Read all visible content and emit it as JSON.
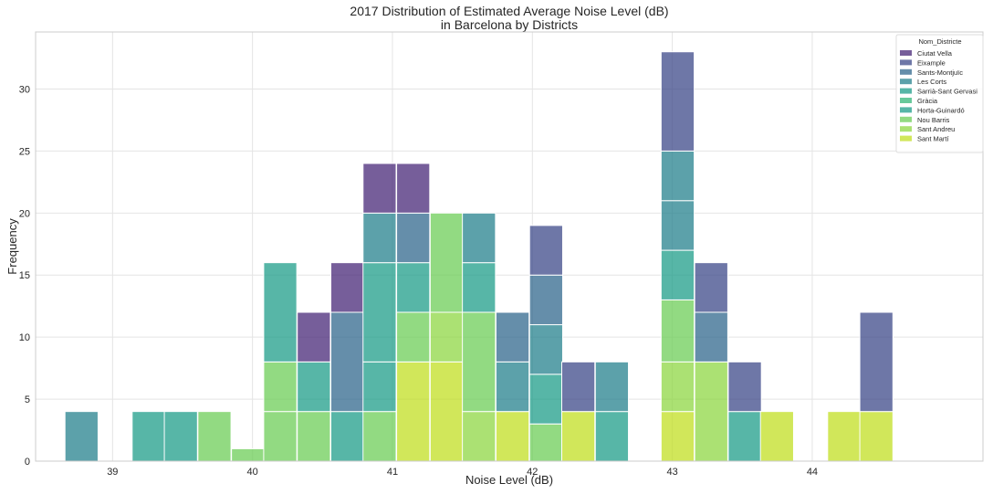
{
  "chart_data": {
    "type": "bar",
    "subtype": "stacked-histogram",
    "title_lines": [
      "2017 Distribution of Estimated Average Noise Level (dB)",
      "in Barcelona by Districts"
    ],
    "xlabel": "Noise Level (dB)",
    "ylabel": "Frequency",
    "xlim": [
      38.45,
      45.22
    ],
    "ylim": [
      0,
      34.6
    ],
    "xticks": [
      39,
      40,
      41,
      42,
      43,
      44
    ],
    "yticks": [
      0,
      5,
      10,
      15,
      20,
      25,
      30
    ],
    "bin_width": 0.2364,
    "grid": true,
    "legend": {
      "title": "Nom_Districte",
      "placement": "top-right",
      "entries": [
        {
          "name": "Ciutat Vella",
          "color": "#482878"
        },
        {
          "name": "Eixample",
          "color": "#3e4a89"
        },
        {
          "name": "Sants-Montjuïc",
          "color": "#31688e"
        },
        {
          "name": "Les Corts",
          "color": "#26828e"
        },
        {
          "name": "Sarrià-Sant Gervasi",
          "color": "#1f9e89"
        },
        {
          "name": "Gràcia",
          "color": "#35b779"
        },
        {
          "name": "Horta-Guinardó",
          "color": "#1f9e89"
        },
        {
          "name": "Nou Barris",
          "color": "#6ece58"
        },
        {
          "name": "Sant Andreu",
          "color": "#8fd744"
        },
        {
          "name": "Sant Martí",
          "color": "#c2df23"
        }
      ]
    },
    "bins": [
      {
        "x": 38.66,
        "segments": [
          {
            "district": "Les Corts",
            "value": 4
          }
        ]
      },
      {
        "x": 39.14,
        "segments": [
          {
            "district": "Horta-Guinardó",
            "value": 4
          }
        ]
      },
      {
        "x": 39.37,
        "segments": [
          {
            "district": "Horta-Guinardó",
            "value": 4
          }
        ]
      },
      {
        "x": 39.61,
        "segments": [
          {
            "district": "Nou Barris",
            "value": 4
          }
        ]
      },
      {
        "x": 39.85,
        "segments": [
          {
            "district": "Nou Barris",
            "value": 1
          }
        ]
      },
      {
        "x": 40.08,
        "segments": [
          {
            "district": "Nou Barris",
            "value": 4
          },
          {
            "district": "Nou Barris",
            "value": 4
          },
          {
            "district": "Horta-Guinardó",
            "value": 8
          }
        ]
      },
      {
        "x": 40.32,
        "segments": [
          {
            "district": "Nou Barris",
            "value": 4
          },
          {
            "district": "Horta-Guinardó",
            "value": 4
          },
          {
            "district": "Ciutat Vella",
            "value": 4
          }
        ]
      },
      {
        "x": 40.56,
        "segments": [
          {
            "district": "Horta-Guinardó",
            "value": 4
          },
          {
            "district": "Sants-Montjuïc",
            "value": 8
          },
          {
            "district": "Ciutat Vella",
            "value": 4
          }
        ]
      },
      {
        "x": 40.79,
        "segments": [
          {
            "district": "Nou Barris",
            "value": 4
          },
          {
            "district": "Horta-Guinardó",
            "value": 4
          },
          {
            "district": "Horta-Guinardó",
            "value": 8
          },
          {
            "district": "Les Corts",
            "value": 4
          },
          {
            "district": "Ciutat Vella",
            "value": 4
          }
        ]
      },
      {
        "x": 41.03,
        "segments": [
          {
            "district": "Sant Martí",
            "value": 8
          },
          {
            "district": "Nou Barris",
            "value": 4
          },
          {
            "district": "Horta-Guinardó",
            "value": 4
          },
          {
            "district": "Sants-Montjuïc",
            "value": 4
          },
          {
            "district": "Ciutat Vella",
            "value": 4
          }
        ]
      },
      {
        "x": 41.27,
        "segments": [
          {
            "district": "Sant Martí",
            "value": 8
          },
          {
            "district": "Sant Andreu",
            "value": 4
          },
          {
            "district": "Nou Barris",
            "value": 8
          }
        ]
      },
      {
        "x": 41.5,
        "segments": [
          {
            "district": "Sant Andreu",
            "value": 4
          },
          {
            "district": "Nou Barris",
            "value": 8
          },
          {
            "district": "Horta-Guinardó",
            "value": 4
          },
          {
            "district": "Les Corts",
            "value": 4
          }
        ]
      },
      {
        "x": 41.74,
        "segments": [
          {
            "district": "Sant Martí",
            "value": 4
          },
          {
            "district": "Les Corts",
            "value": 4
          },
          {
            "district": "Sants-Montjuïc",
            "value": 4
          }
        ]
      },
      {
        "x": 41.98,
        "segments": [
          {
            "district": "Nou Barris",
            "value": 3
          },
          {
            "district": "Horta-Guinardó",
            "value": 4
          },
          {
            "district": "Les Corts",
            "value": 4
          },
          {
            "district": "Sants-Montjuïc",
            "value": 4
          },
          {
            "district": "Eixample",
            "value": 4
          }
        ]
      },
      {
        "x": 42.21,
        "segments": [
          {
            "district": "Sant Martí",
            "value": 4
          },
          {
            "district": "Eixample",
            "value": 4
          }
        ]
      },
      {
        "x": 42.45,
        "segments": [
          {
            "district": "Horta-Guinardó",
            "value": 4
          },
          {
            "district": "Les Corts",
            "value": 4
          }
        ]
      },
      {
        "x": 42.92,
        "segments": [
          {
            "district": "Sant Martí",
            "value": 4
          },
          {
            "district": "Sant Andreu",
            "value": 4
          },
          {
            "district": "Nou Barris",
            "value": 5
          },
          {
            "district": "Horta-Guinardó",
            "value": 4
          },
          {
            "district": "Les Corts",
            "value": 4
          },
          {
            "district": "Les Corts",
            "value": 4
          },
          {
            "district": "Eixample",
            "value": 8
          }
        ]
      },
      {
        "x": 43.16,
        "segments": [
          {
            "district": "Sant Andreu",
            "value": 8
          },
          {
            "district": "Sants-Montjuïc",
            "value": 4
          },
          {
            "district": "Eixample",
            "value": 4
          }
        ]
      },
      {
        "x": 43.4,
        "segments": [
          {
            "district": "Horta-Guinardó",
            "value": 4
          },
          {
            "district": "Eixample",
            "value": 4
          }
        ]
      },
      {
        "x": 43.63,
        "segments": [
          {
            "district": "Sant Martí",
            "value": 4
          }
        ]
      },
      {
        "x": 44.11,
        "segments": [
          {
            "district": "Sant Martí",
            "value": 4
          }
        ]
      },
      {
        "x": 44.34,
        "segments": [
          {
            "district": "Sant Martí",
            "value": 4
          },
          {
            "district": "Eixample",
            "value": 8
          }
        ]
      }
    ]
  }
}
